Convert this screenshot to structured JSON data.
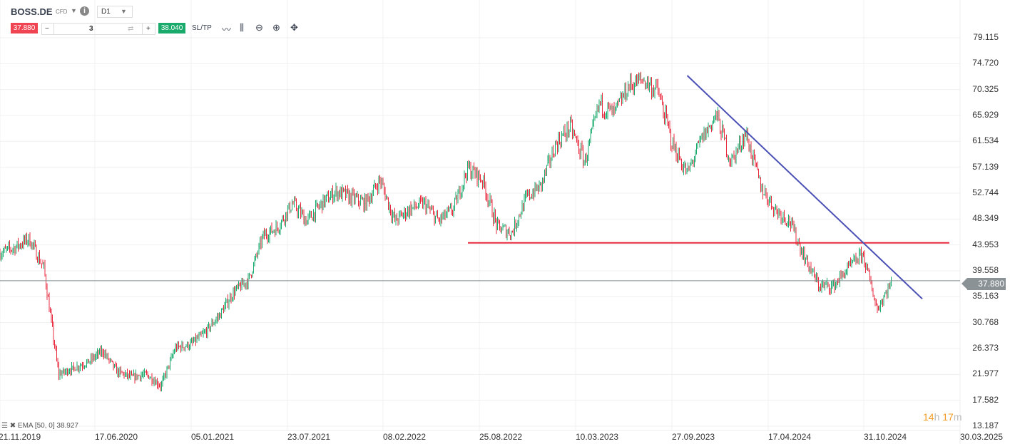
{
  "toolbar": {
    "symbol": "BOSS.DE",
    "instrument_type": "CFD",
    "timeframe": "D1",
    "sell_price": "37.880",
    "quantity": "3",
    "buy_price": "38.040",
    "sltp_label": "SL/TP",
    "icons": [
      "chevron-down-icon",
      "info-icon",
      "line-chart-icon",
      "candlestick-icon",
      "zoom-out-icon",
      "zoom-in-icon",
      "crosshair-move-icon"
    ]
  },
  "indicator": {
    "label": "EMA [50, 0] 38.927"
  },
  "countdown": {
    "hours": "14",
    "h": "h",
    "minutes": "17",
    "m": "m"
  },
  "colors": {
    "up": "#1aaa6c",
    "down": "#e8283c",
    "support_line": "#e8283c",
    "trend_line": "#4a50b5",
    "price_line": "#7d8a90"
  },
  "chart_data": {
    "type": "candlestick",
    "y_ticks": [
      "79.115",
      "74.720",
      "70.325",
      "65.929",
      "61.534",
      "57.139",
      "52.744",
      "48.349",
      "43.953",
      "39.558",
      "35.163",
      "30.768",
      "26.373",
      "21.977",
      "17.582",
      "13.187"
    ],
    "ylim": [
      13.187,
      79.115
    ],
    "x_ticks": [
      "21.11.2019",
      "17.06.2020",
      "05.01.2021",
      "23.07.2021",
      "08.02.2022",
      "25.08.2022",
      "10.03.2023",
      "27.09.2023",
      "17.04.2024",
      "31.10.2024",
      "30.03.2025"
    ],
    "current_price": "37.880",
    "approx_monthly_close": [
      [
        "2019-11",
        42.6
      ],
      [
        "2019-12",
        43.5
      ],
      [
        "2020-01",
        45
      ],
      [
        "2020-02",
        40
      ],
      [
        "2020-03",
        22
      ],
      [
        "2020-04",
        23
      ],
      [
        "2020-05",
        24
      ],
      [
        "2020-06",
        26
      ],
      [
        "2020-07",
        22.5
      ],
      [
        "2020-08",
        21.5
      ],
      [
        "2020-09",
        22
      ],
      [
        "2020-10",
        20
      ],
      [
        "2020-11",
        26.5
      ],
      [
        "2020-12",
        27
      ],
      [
        "2021-01",
        29
      ],
      [
        "2021-02",
        32
      ],
      [
        "2021-03",
        36
      ],
      [
        "2021-04",
        38
      ],
      [
        "2021-05",
        45.5
      ],
      [
        "2021-06",
        47
      ],
      [
        "2021-07",
        51
      ],
      [
        "2021-08",
        48
      ],
      [
        "2021-09",
        51
      ],
      [
        "2021-10",
        53
      ],
      [
        "2021-11",
        52
      ],
      [
        "2021-12",
        51
      ],
      [
        "2022-01",
        55
      ],
      [
        "2022-02",
        48
      ],
      [
        "2022-03",
        50
      ],
      [
        "2022-04",
        51
      ],
      [
        "2022-05",
        48
      ],
      [
        "2022-06",
        50
      ],
      [
        "2022-07",
        57
      ],
      [
        "2022-08",
        55
      ],
      [
        "2022-09",
        47
      ],
      [
        "2022-10",
        46
      ],
      [
        "2022-11",
        52
      ],
      [
        "2022-12",
        54
      ],
      [
        "2023-01",
        61
      ],
      [
        "2023-02",
        64
      ],
      [
        "2023-03",
        58
      ],
      [
        "2023-04",
        68
      ],
      [
        "2023-05",
        66
      ],
      [
        "2023-06",
        71
      ],
      [
        "2023-07",
        72
      ],
      [
        "2023-08",
        70
      ],
      [
        "2023-09",
        61
      ],
      [
        "2023-10",
        56
      ],
      [
        "2023-11",
        62
      ],
      [
        "2023-12",
        66
      ],
      [
        "2024-01",
        58
      ],
      [
        "2024-02",
        63
      ],
      [
        "2024-03",
        54
      ],
      [
        "2024-04",
        50
      ],
      [
        "2024-05",
        48
      ],
      [
        "2024-06",
        42
      ],
      [
        "2024-07",
        37
      ],
      [
        "2024-08",
        37
      ],
      [
        "2024-09",
        40
      ],
      [
        "2024-10",
        42.5
      ],
      [
        "2024-11",
        33
      ],
      [
        "2024-12",
        37.88
      ]
    ],
    "drawings": [
      {
        "kind": "horizontal",
        "value": 44.3,
        "from": "2022-08",
        "to": "2025-03"
      },
      {
        "kind": "trend",
        "from": [
          "2023-10",
          72.7
        ],
        "to": [
          "2025-01",
          34.8
        ]
      }
    ]
  }
}
